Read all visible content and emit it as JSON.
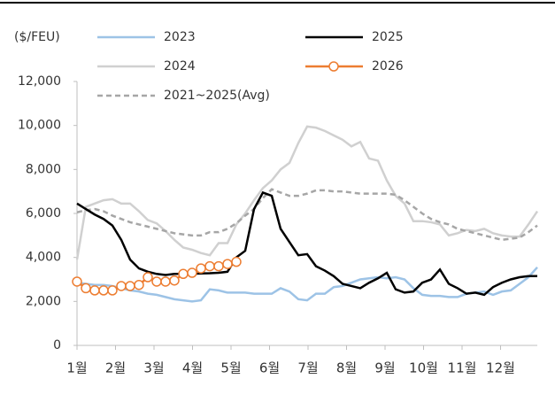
{
  "chart_data": {
    "type": "line",
    "y_unit": "($/FEU)",
    "x": [
      1,
      2,
      3,
      4,
      5,
      6,
      7,
      8,
      9,
      10,
      11,
      12,
      13,
      14,
      15,
      16,
      17,
      18,
      19,
      20,
      21,
      22,
      23,
      24,
      25,
      26,
      27,
      28,
      29,
      30,
      31,
      32,
      33,
      34,
      35,
      36,
      37,
      38,
      39,
      40,
      41,
      42,
      43,
      44,
      45,
      46,
      47,
      48,
      49,
      50,
      51,
      52,
      53
    ],
    "xlim": [
      1,
      53
    ],
    "xticks": [
      {
        "value": 1,
        "label": "1월"
      },
      {
        "value": 5.35,
        "label": "2월"
      },
      {
        "value": 9.7,
        "label": "3월"
      },
      {
        "value": 14.05,
        "label": "4월"
      },
      {
        "value": 18.4,
        "label": "5월"
      },
      {
        "value": 22.75,
        "label": "6월"
      },
      {
        "value": 27.1,
        "label": "7월"
      },
      {
        "value": 31.45,
        "label": "8월"
      },
      {
        "value": 35.8,
        "label": "9월"
      },
      {
        "value": 40.15,
        "label": "10월"
      },
      {
        "value": 44.5,
        "label": "11월"
      },
      {
        "value": 48.85,
        "label": "12월"
      }
    ],
    "ylim": [
      0,
      12000
    ],
    "yticks": [
      0,
      {
        "value": 2000,
        "label": "2,000"
      },
      {
        "value": 4000,
        "label": "4,000"
      },
      {
        "value": 6000,
        "label": "6,000"
      },
      {
        "value": 8000,
        "label": "8,000"
      },
      {
        "value": 10000,
        "label": "10,000"
      },
      {
        "value": 12000,
        "label": "12,000"
      }
    ],
    "grid": false,
    "series": [
      {
        "name": "2023",
        "color": "#9dc3e6",
        "values": [
          2850,
          2800,
          2750,
          2750,
          2700,
          2600,
          2500,
          2450,
          2350,
          2300,
          2200,
          2100,
          2050,
          2000,
          2050,
          2550,
          2500,
          2400,
          2400,
          2400,
          2350,
          2350,
          2350,
          2600,
          2450,
          2100,
          2050,
          2350,
          2350,
          2650,
          2700,
          2850,
          3000,
          3050,
          3100,
          3050,
          3100,
          3000,
          2600,
          2300,
          2250,
          2250,
          2200,
          2200,
          2350,
          2400,
          2450,
          2300,
          2450,
          2500,
          2800,
          3100,
          3550
        ]
      },
      {
        "name": "2024",
        "color": "#d0d0d0",
        "values": [
          3900,
          6300,
          6450,
          6600,
          6650,
          6450,
          6450,
          6100,
          5700,
          5550,
          5200,
          4800,
          4450,
          4350,
          4200,
          4100,
          4650,
          4650,
          5500,
          6000,
          6600,
          7150,
          7500,
          8000,
          8300,
          9200,
          9950,
          9900,
          9750,
          9550,
          9350,
          9050,
          9250,
          8500,
          8400,
          7500,
          6800,
          6450,
          5650,
          5650,
          5600,
          5500,
          5000,
          5100,
          5250,
          5200,
          5300,
          5100,
          5000,
          4950,
          4950,
          5500,
          6100
        ]
      },
      {
        "name": "2021~2025(Avg)",
        "color": "#a6a6a6",
        "dash": true,
        "values": [
          6050,
          6150,
          6200,
          6100,
          5900,
          5750,
          5600,
          5500,
          5400,
          5300,
          5200,
          5100,
          5050,
          5000,
          5000,
          5150,
          5150,
          5300,
          5550,
          5900,
          6200,
          6700,
          7100,
          6950,
          6800,
          6800,
          6900,
          7050,
          7050,
          7000,
          7000,
          6950,
          6900,
          6900,
          6900,
          6900,
          6850,
          6600,
          6300,
          6000,
          5750,
          5600,
          5500,
          5300,
          5200,
          5100,
          5000,
          4900,
          4800,
          4850,
          4900,
          5150,
          5450
        ]
      },
      {
        "name": "2025",
        "color": "#000000",
        "values": [
          6450,
          6200,
          5950,
          5750,
          5450,
          4800,
          3900,
          3500,
          3350,
          3250,
          3200,
          3250,
          3250,
          3250,
          3270,
          3280,
          3300,
          3350,
          4000,
          4300,
          6200,
          6950,
          6800,
          5300,
          4700,
          4100,
          4150,
          3600,
          3400,
          3150,
          2800,
          2700,
          2600,
          2850,
          3050,
          3300,
          2550,
          2400,
          2450,
          2850,
          3000,
          3450,
          2800,
          2600,
          2350,
          2400,
          2300,
          2650,
          2850,
          3000,
          3100,
          3150,
          3150
        ]
      },
      {
        "name": "2026",
        "color": "#ed7d31",
        "marker": "circle",
        "values": [
          2900,
          2600,
          2500,
          2500,
          2500,
          2700,
          2700,
          2750,
          3100,
          2900,
          2900,
          2950,
          3250,
          3300,
          3500,
          3600,
          3600,
          3700,
          3800,
          null,
          null,
          null,
          null,
          null,
          null,
          null,
          null,
          null,
          null,
          null,
          null,
          null,
          null,
          null,
          null,
          null,
          null,
          null,
          null,
          null,
          null,
          null,
          null,
          null,
          null,
          null,
          null,
          null,
          null,
          null,
          null,
          null,
          null
        ]
      }
    ]
  }
}
